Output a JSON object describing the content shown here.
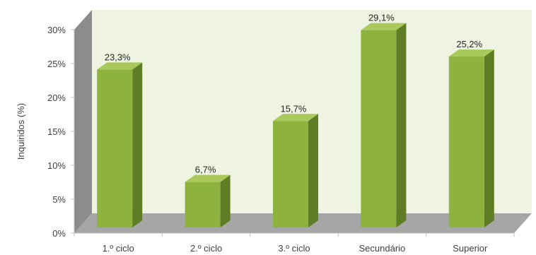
{
  "chart_data": {
    "type": "bar",
    "style": "3d-column",
    "categories": [
      "1.º ciclo",
      "2.º ciclo",
      "3.º ciclo",
      "Secundário",
      "Superior"
    ],
    "values": [
      23.3,
      6.7,
      15.7,
      29.1,
      25.2
    ],
    "data_labels": [
      "23,3%",
      "6,7%",
      "15,7%",
      "29,1%",
      "25,2%"
    ],
    "ylabel": "Inquiridos  (%)",
    "ylim": [
      0,
      30
    ],
    "y_ticks": [
      0,
      5,
      10,
      15,
      20,
      25,
      30
    ],
    "y_tick_labels": [
      "0%",
      "5%",
      "10%",
      "15%",
      "20%",
      "25%",
      "30%"
    ],
    "grid": false,
    "legend": "none",
    "colors": {
      "bar_front": "#8db33e",
      "bar_side": "#5e7d24",
      "bar_top": "#a9c95c",
      "back_wall": "#eef3e2",
      "side_wall": "#8c8c8c",
      "floor": "#a6a6a6"
    }
  }
}
